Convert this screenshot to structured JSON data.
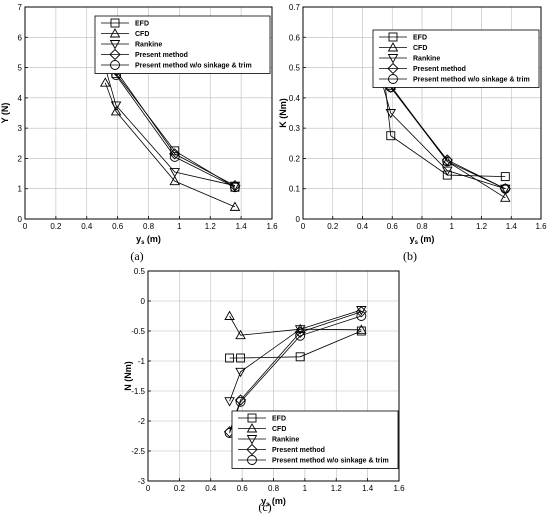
{
  "chart_data": [
    {
      "type": "line",
      "panel_label": "(a)",
      "xlabel_main": "y",
      "xlabel_sub": "s",
      "xlabel_unit": " (m)",
      "ylabel": "Y (N)",
      "xlim": [
        0,
        1.6
      ],
      "ylim": [
        0,
        7
      ],
      "xticks": [
        "0",
        "0.2",
        "0.4",
        "0.6",
        "0.8",
        "1",
        "1.2",
        "1.4",
        "1.6"
      ],
      "yticks": [
        "0",
        "1",
        "2",
        "3",
        "4",
        "5",
        "6",
        "7"
      ],
      "grid": true,
      "legend_position": "top-right",
      "series": [
        {
          "name": "EFD",
          "marker": "square",
          "x": [
            0.52,
            0.59,
            0.97,
            1.36
          ],
          "y": [
            6.05,
            4.8,
            2.25,
            1.05
          ]
        },
        {
          "name": "CFD",
          "marker": "triangle-up",
          "x": [
            0.52,
            0.59,
            0.97,
            1.36
          ],
          "y": [
            4.5,
            3.55,
            1.25,
            0.4
          ]
        },
        {
          "name": "Rankine",
          "marker": "triangle-down",
          "x": [
            0.52,
            0.59,
            0.97,
            1.36
          ],
          "y": [
            5.0,
            3.75,
            1.55,
            1.1
          ]
        },
        {
          "name": "Present method",
          "marker": "diamond",
          "x": [
            0.52,
            0.59,
            0.97,
            1.36
          ],
          "y": [
            6.15,
            4.9,
            2.15,
            1.1
          ]
        },
        {
          "name": "Present method w/o sinkage & trim",
          "marker": "circle",
          "x": [
            0.52,
            0.59,
            0.97,
            1.36
          ],
          "y": [
            5.95,
            4.75,
            2.05,
            1.05
          ]
        }
      ]
    },
    {
      "type": "line",
      "panel_label": "(b)",
      "xlabel_main": "y",
      "xlabel_sub": "s",
      "xlabel_unit": " (m)",
      "ylabel": "K (Nm)",
      "xlim": [
        0,
        1.6
      ],
      "ylim": [
        0,
        0.7
      ],
      "xticks": [
        "0",
        "0.2",
        "0.4",
        "0.6",
        "0.8",
        "1",
        "1.2",
        "1.4",
        "1.6"
      ],
      "yticks": [
        "0",
        "0.1",
        "0.2",
        "0.3",
        "0.4",
        "0.5",
        "0.6",
        "0.7"
      ],
      "grid": true,
      "legend_position": "top-right",
      "series": [
        {
          "name": "EFD",
          "marker": "square",
          "x": [
            0.52,
            0.59,
            0.97,
            1.36
          ],
          "y": [
            0.585,
            0.275,
            0.145,
            0.14
          ]
        },
        {
          "name": "CFD",
          "marker": "triangle-up",
          "x": [
            0.52,
            0.59,
            0.97,
            1.36
          ],
          "y": [
            0.545,
            0.44,
            0.19,
            0.07
          ]
        },
        {
          "name": "Rankine",
          "marker": "triangle-down",
          "x": [
            0.52,
            0.59,
            0.97,
            1.36
          ],
          "y": [
            0.47,
            0.35,
            0.16,
            0.1
          ]
        },
        {
          "name": "Present method",
          "marker": "diamond",
          "x": [
            0.52,
            0.59,
            0.97,
            1.36
          ],
          "y": [
            0.515,
            0.435,
            0.195,
            0.1
          ]
        },
        {
          "name": "Present method w/o sinkage & trim",
          "marker": "circle",
          "x": [
            0.52,
            0.59,
            0.97,
            1.36
          ],
          "y": [
            0.505,
            0.435,
            0.19,
            0.1
          ]
        }
      ]
    },
    {
      "type": "line",
      "panel_label": "(c)",
      "xlabel_main": "y",
      "xlabel_sub": "s",
      "xlabel_unit": " (m)",
      "ylabel": "N (Nm)",
      "xlim": [
        0,
        1.6
      ],
      "ylim": [
        -3,
        0.5
      ],
      "xticks": [
        "0",
        "0.2",
        "0.4",
        "0.6",
        "0.8",
        "1",
        "1.2",
        "1.4",
        "1.6"
      ],
      "yticks": [
        "-3",
        "-2.5",
        "-2",
        "-1.5",
        "-1",
        "-0.5",
        "0",
        "0.5"
      ],
      "grid": true,
      "legend_position": "bottom-right",
      "series": [
        {
          "name": "EFD",
          "marker": "square",
          "x": [
            0.52,
            0.59,
            0.97,
            1.36
          ],
          "y": [
            -0.95,
            -0.95,
            -0.93,
            -0.5
          ]
        },
        {
          "name": "CFD",
          "marker": "triangle-up",
          "x": [
            0.52,
            0.59,
            0.97,
            1.36
          ],
          "y": [
            -0.25,
            -0.57,
            -0.47,
            -0.48
          ]
        },
        {
          "name": "Rankine",
          "marker": "triangle-down",
          "x": [
            0.52,
            0.59,
            0.97,
            1.36
          ],
          "y": [
            -1.67,
            -1.18,
            -0.47,
            -0.15
          ]
        },
        {
          "name": "Present method",
          "marker": "diamond",
          "x": [
            0.52,
            0.59,
            0.97,
            1.36
          ],
          "y": [
            -2.18,
            -1.65,
            -0.52,
            -0.18
          ]
        },
        {
          "name": "Present method w/o sinkage & trim",
          "marker": "circle",
          "x": [
            0.52,
            0.59,
            0.97,
            1.36
          ],
          "y": [
            -2.2,
            -1.68,
            -0.58,
            -0.25
          ]
        }
      ]
    }
  ]
}
